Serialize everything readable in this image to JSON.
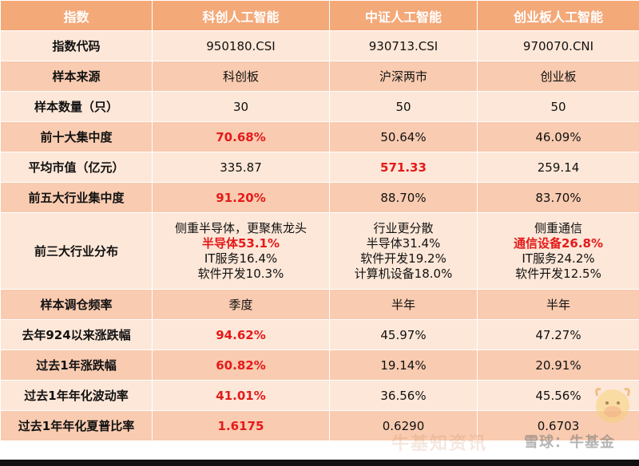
{
  "header": [
    "指数",
    "科创人工智能",
    "中证人工智能",
    "创业板人工智能"
  ],
  "rows": [
    {
      "label": "指数代码",
      "cells": [
        {
          "lines": [
            "950180.CSI"
          ]
        },
        {
          "lines": [
            "930713.CSI"
          ]
        },
        {
          "lines": [
            "970070.CNI"
          ]
        }
      ]
    },
    {
      "label": "样本来源",
      "cells": [
        {
          "lines": [
            "科创板"
          ]
        },
        {
          "lines": [
            "沪深两市"
          ]
        },
        {
          "lines": [
            "创业板"
          ]
        }
      ]
    },
    {
      "label": "样本数量（只）",
      "cells": [
        {
          "lines": [
            "30"
          ]
        },
        {
          "lines": [
            "50"
          ]
        },
        {
          "lines": [
            "50"
          ]
        }
      ]
    },
    {
      "label": "前十大集中度",
      "cells": [
        {
          "lines": [
            "70.68%"
          ],
          "red": [
            0
          ]
        },
        {
          "lines": [
            "50.64%"
          ]
        },
        {
          "lines": [
            "46.09%"
          ]
        }
      ]
    },
    {
      "label": "平均市值（亿元）",
      "cells": [
        {
          "lines": [
            "335.87"
          ]
        },
        {
          "lines": [
            "571.33"
          ],
          "red": [
            0
          ]
        },
        {
          "lines": [
            "259.14"
          ]
        }
      ]
    },
    {
      "label": "前五大行业集中度",
      "cells": [
        {
          "lines": [
            "91.20%"
          ],
          "red": [
            0
          ]
        },
        {
          "lines": [
            "88.70%"
          ]
        },
        {
          "lines": [
            "83.70%"
          ]
        }
      ]
    },
    {
      "label": "前三大行业分布",
      "cells": [
        {
          "lines": [
            "侧重半导体，更聚焦龙头",
            "半导体53.1%",
            "IT服务16.4%",
            "软件开发10.3%"
          ],
          "red": [
            1
          ]
        },
        {
          "lines": [
            "行业更分散",
            "半导体31.4%",
            "软件开发19.2%",
            "计算机设备18.0%"
          ]
        },
        {
          "lines": [
            "侧重通信",
            "通信设备26.8%",
            "IT服务24.2%",
            "软件开发12.5%"
          ],
          "red": [
            1
          ]
        }
      ]
    },
    {
      "label": "样本调仓频率",
      "cells": [
        {
          "lines": [
            "季度"
          ]
        },
        {
          "lines": [
            "半年"
          ]
        },
        {
          "lines": [
            "半年"
          ]
        }
      ]
    },
    {
      "label": "去年924以来涨跌幅",
      "cells": [
        {
          "lines": [
            "94.62%"
          ],
          "red": [
            0
          ]
        },
        {
          "lines": [
            "45.97%"
          ]
        },
        {
          "lines": [
            "47.27%"
          ]
        }
      ]
    },
    {
      "label": "过去1年涨跌幅",
      "cells": [
        {
          "lines": [
            "60.82%"
          ],
          "red": [
            0
          ]
        },
        {
          "lines": [
            "19.14%"
          ]
        },
        {
          "lines": [
            "20.91%"
          ]
        }
      ]
    },
    {
      "label": "过去1年年化波动率",
      "cells": [
        {
          "lines": [
            "41.01%"
          ],
          "red": [
            0
          ]
        },
        {
          "lines": [
            "36.56%"
          ]
        },
        {
          "lines": [
            "45.56%"
          ]
        }
      ]
    },
    {
      "label": "过去1年年化夏普比率",
      "cells": [
        {
          "lines": [
            "1.6175"
          ],
          "red": [
            0
          ]
        },
        {
          "lines": [
            "0.6290"
          ]
        },
        {
          "lines": [
            "0.6703"
          ]
        }
      ]
    }
  ],
  "watermark": "雪球：牛基金",
  "watermark_faint": "牛基知资讯",
  "colors": {
    "header_bg": "#f4a979",
    "row_light": "#fde7d8",
    "row_dark": "#f9cbb0",
    "highlight": "#e41a1a"
  }
}
